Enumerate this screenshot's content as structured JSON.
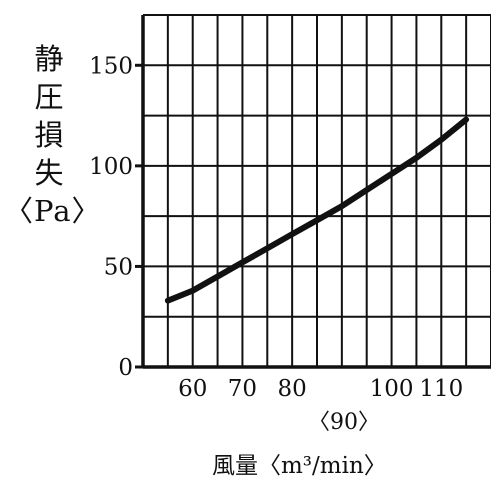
{
  "chart_data": {
    "type": "line",
    "ylabel_chars": [
      "静",
      "圧",
      "損",
      "失"
    ],
    "ylabel_unit": "〈Pa〉",
    "xlabel": "風量〈m³/min〉",
    "x_extra_tick": "〈90〉",
    "x_ticks": [
      60,
      70,
      80,
      100,
      110
    ],
    "y_ticks": [
      0,
      50,
      100,
      150
    ],
    "xlim": [
      50,
      120
    ],
    "ylim": [
      0,
      175
    ],
    "grid": true,
    "series": [
      {
        "x": [
          55,
          60,
          65,
          70,
          75,
          80,
          85,
          90,
          95,
          100,
          105,
          110,
          115
        ],
        "y": [
          33,
          38,
          45,
          52,
          59,
          66,
          73,
          80,
          88,
          96,
          104,
          113,
          123
        ]
      }
    ]
  }
}
